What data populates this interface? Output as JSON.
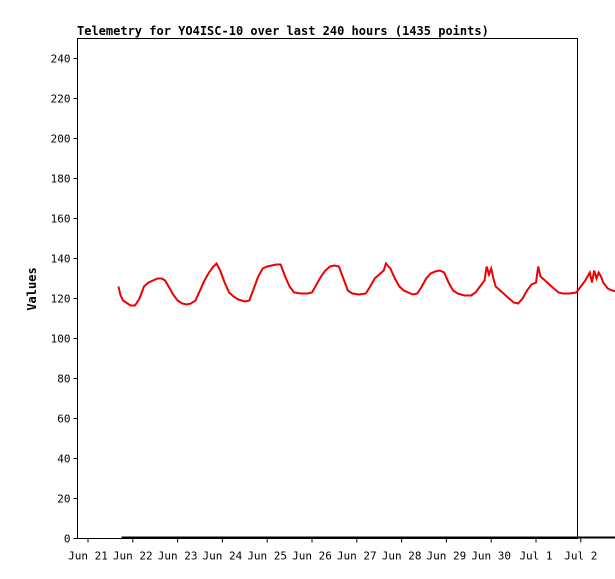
{
  "chart_data": {
    "type": "line",
    "title": "Telemetry for YO4ISC-10 over last 240 hours (1435 points)",
    "ylabel": "Values",
    "xlabel": "",
    "ylim": [
      0,
      250
    ],
    "xlim": [
      "Jun 21",
      "Jul 2"
    ],
    "y_ticks": [
      0,
      20,
      40,
      60,
      80,
      100,
      120,
      140,
      160,
      180,
      200,
      220,
      240
    ],
    "x_ticks": [
      "Jun 21",
      "Jun 22",
      "Jun 23",
      "Jun 24",
      "Jun 25",
      "Jun 26",
      "Jun 27",
      "Jun 28",
      "Jun 29",
      "Jun 30",
      "Jul 1",
      "Jul 2"
    ],
    "grid": false,
    "legend": "none",
    "colors": {
      "series": "#ee0000",
      "baseline": "#000000",
      "axis": "#000000",
      "background": "#ffffff"
    },
    "series": [
      {
        "values": [
          [
            0.68,
            126
          ],
          [
            0.72,
            122
          ],
          [
            0.78,
            119
          ],
          [
            0.85,
            118
          ],
          [
            0.95,
            116.5
          ],
          [
            1.05,
            116.5
          ],
          [
            1.15,
            120
          ],
          [
            1.25,
            126
          ],
          [
            1.35,
            128
          ],
          [
            1.45,
            129
          ],
          [
            1.55,
            130
          ],
          [
            1.65,
            130
          ],
          [
            1.72,
            129
          ],
          [
            1.8,
            126
          ],
          [
            1.9,
            122
          ],
          [
            2.0,
            119
          ],
          [
            2.1,
            117.5
          ],
          [
            2.2,
            117
          ],
          [
            2.3,
            117.5
          ],
          [
            2.4,
            119
          ],
          [
            2.5,
            124
          ],
          [
            2.6,
            129
          ],
          [
            2.7,
            133
          ],
          [
            2.8,
            136
          ],
          [
            2.87,
            137.5
          ],
          [
            2.95,
            134
          ],
          [
            3.05,
            128
          ],
          [
            3.15,
            123
          ],
          [
            3.25,
            121
          ],
          [
            3.35,
            119.5
          ],
          [
            3.5,
            118.5
          ],
          [
            3.6,
            119
          ],
          [
            3.7,
            125
          ],
          [
            3.8,
            131
          ],
          [
            3.9,
            135
          ],
          [
            4.0,
            136
          ],
          [
            4.1,
            136.5
          ],
          [
            4.2,
            137
          ],
          [
            4.3,
            137
          ],
          [
            4.4,
            131
          ],
          [
            4.5,
            126
          ],
          [
            4.6,
            123
          ],
          [
            4.75,
            122.5
          ],
          [
            4.9,
            122.5
          ],
          [
            5.0,
            123
          ],
          [
            5.1,
            127
          ],
          [
            5.2,
            131
          ],
          [
            5.3,
            134
          ],
          [
            5.4,
            136
          ],
          [
            5.5,
            136.5
          ],
          [
            5.6,
            136
          ],
          [
            5.7,
            130
          ],
          [
            5.8,
            124
          ],
          [
            5.9,
            122.5
          ],
          [
            6.05,
            122
          ],
          [
            6.2,
            122.5
          ],
          [
            6.3,
            126
          ],
          [
            6.4,
            130
          ],
          [
            6.5,
            132
          ],
          [
            6.6,
            134
          ],
          [
            6.65,
            137.5
          ],
          [
            6.75,
            135
          ],
          [
            6.85,
            130
          ],
          [
            6.95,
            126
          ],
          [
            7.05,
            124
          ],
          [
            7.15,
            123
          ],
          [
            7.25,
            122
          ],
          [
            7.35,
            122.5
          ],
          [
            7.45,
            126
          ],
          [
            7.55,
            130
          ],
          [
            7.65,
            132.5
          ],
          [
            7.75,
            133.5
          ],
          [
            7.85,
            134
          ],
          [
            7.95,
            133
          ],
          [
            8.05,
            128
          ],
          [
            8.15,
            124
          ],
          [
            8.25,
            122.5
          ],
          [
            8.4,
            121.5
          ],
          [
            8.55,
            121.5
          ],
          [
            8.65,
            123
          ],
          [
            8.75,
            126
          ],
          [
            8.85,
            129
          ],
          [
            8.9,
            136
          ],
          [
            8.95,
            132
          ],
          [
            9.0,
            135
          ],
          [
            9.05,
            130
          ],
          [
            9.1,
            126
          ],
          [
            9.2,
            124
          ],
          [
            9.3,
            122
          ],
          [
            9.4,
            120
          ],
          [
            9.5,
            118
          ],
          [
            9.6,
            117.5
          ],
          [
            9.7,
            120
          ],
          [
            9.8,
            124
          ],
          [
            9.9,
            127
          ],
          [
            10.0,
            128
          ],
          [
            10.05,
            136
          ],
          [
            10.1,
            131
          ],
          [
            10.2,
            129
          ],
          [
            10.3,
            127
          ],
          [
            10.4,
            125
          ],
          [
            10.5,
            123
          ],
          [
            10.6,
            122.5
          ],
          [
            10.75,
            122.5
          ],
          [
            10.9,
            123
          ],
          [
            11.0,
            126
          ],
          [
            11.1,
            129
          ],
          [
            11.2,
            133
          ],
          [
            11.25,
            128
          ],
          [
            11.3,
            134
          ],
          [
            11.35,
            130
          ],
          [
            11.4,
            133
          ],
          [
            11.45,
            131
          ],
          [
            11.5,
            128
          ],
          [
            11.6,
            125
          ],
          [
            11.7,
            124
          ],
          [
            11.8,
            123.5
          ],
          [
            11.9,
            122
          ],
          [
            12.0,
            120.5
          ],
          [
            12.1,
            120.5
          ],
          [
            12.2,
            124
          ],
          [
            12.3,
            127
          ],
          [
            12.4,
            130
          ],
          [
            12.5,
            131
          ],
          [
            12.6,
            133
          ],
          [
            12.7,
            134
          ],
          [
            12.75,
            134
          ]
        ]
      }
    ],
    "baseline": {
      "y": 0,
      "x_from": 0.75,
      "x_to": 12.8
    }
  }
}
